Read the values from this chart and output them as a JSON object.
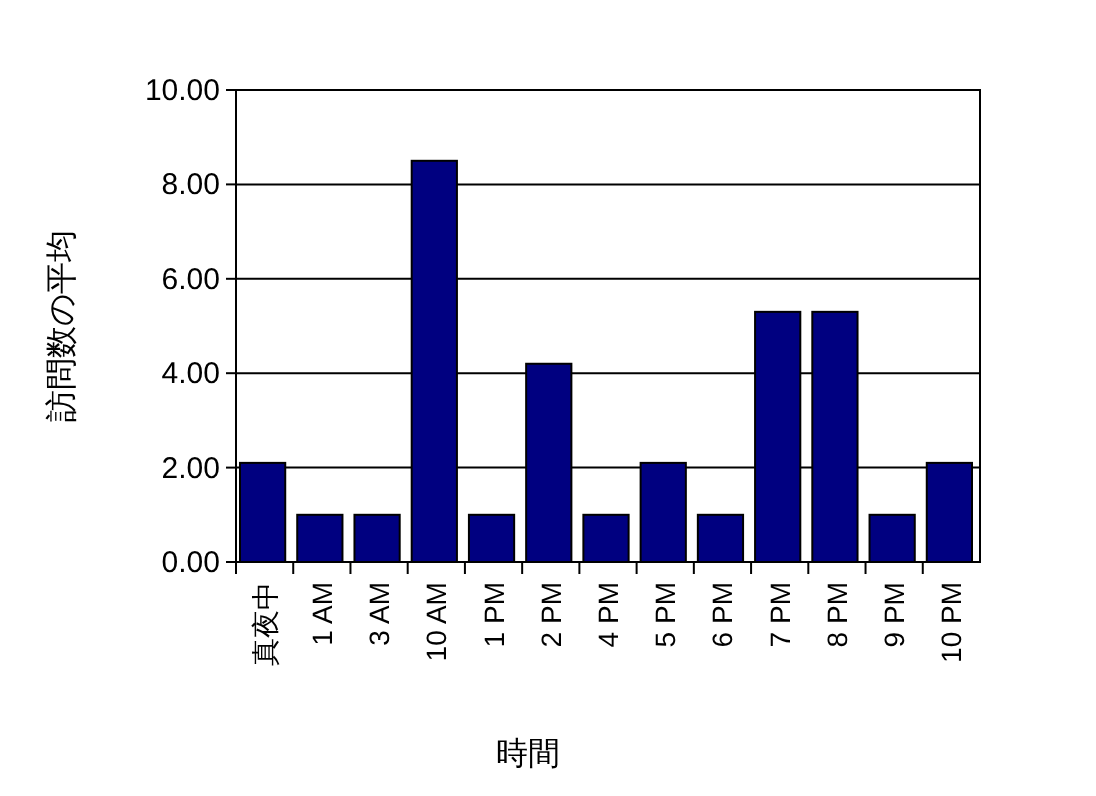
{
  "chart_data": {
    "type": "bar",
    "xlabel": "時間",
    "ylabel": "訪問数の平均",
    "categories": [
      "真夜中",
      "1 AM",
      "3 AM",
      "10 AM",
      "1 PM",
      "2 PM",
      "4 PM",
      "5 PM",
      "6 PM",
      "7 PM",
      "8 PM",
      "9 PM",
      "10 PM"
    ],
    "values": [
      2.1,
      1,
      1,
      8.5,
      1,
      4.2,
      1,
      2.1,
      1,
      5.3,
      5.3,
      1,
      2.1
    ],
    "color": "#000080",
    "ylim": [
      0,
      10
    ],
    "yticks": [
      {
        "value": 0,
        "label": "0.00"
      },
      {
        "value": 2,
        "label": "2.00"
      },
      {
        "value": 4,
        "label": "4.00"
      },
      {
        "value": 6,
        "label": "6.00"
      },
      {
        "value": 8,
        "label": "8.00"
      },
      {
        "value": 10,
        "label": "10.00"
      }
    ],
    "grid": "y"
  }
}
